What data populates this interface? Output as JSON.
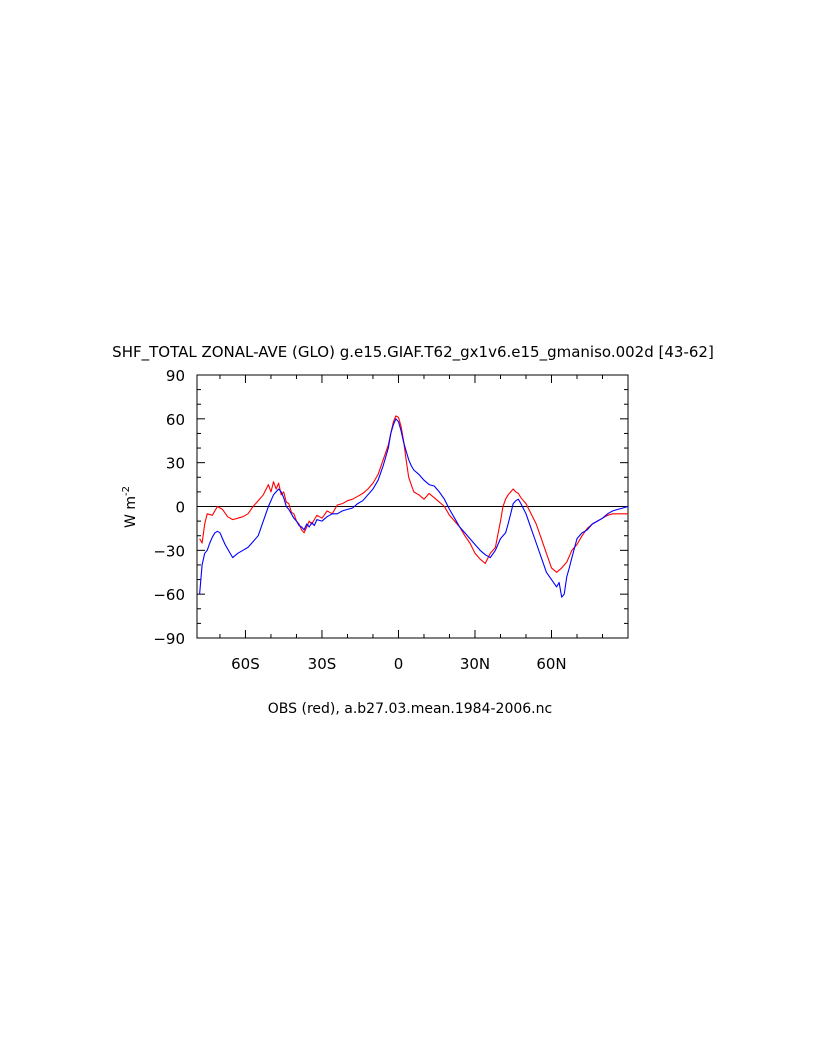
{
  "chart_data": {
    "type": "line",
    "title": "SHF_TOTAL ZONAL-AVE (GLO) g.e15.GIAF.T62_gx1v6.e15_gmaniso.002d  [43-62]",
    "ylabel": "W m",
    "ylabel_sup": "-2",
    "xlabel": "OBS (red), a.b27.03.mean.1984-2006.nc",
    "xlim": [
      -79,
      90
    ],
    "ylim": [
      -90,
      90
    ],
    "yticks": [
      -90,
      -60,
      -30,
      0,
      30,
      60,
      90
    ],
    "ytick_labels": [
      "−90",
      "−60",
      "−30",
      "0",
      "30",
      "60",
      "90"
    ],
    "xticks": [
      -60,
      -30,
      0,
      30,
      60
    ],
    "xtick_labels": [
      "60S",
      "30S",
      "0",
      "30N",
      "60N"
    ],
    "zero_line": true,
    "grid": false,
    "legend": "none",
    "series": [
      {
        "color": "#ff0000",
        "x": [
          -78,
          -77,
          -76,
          -75,
          -73,
          -71,
          -69,
          -67,
          -65,
          -63,
          -61,
          -59,
          -57,
          -55,
          -53,
          -51,
          -50,
          -49,
          -48,
          -47,
          -46,
          -45,
          -44,
          -43,
          -42,
          -41,
          -40,
          -39,
          -38,
          -37,
          -36,
          -35,
          -34,
          -33,
          -32,
          -30,
          -28,
          -26,
          -24,
          -22,
          -20,
          -18,
          -16,
          -14,
          -12,
          -10,
          -8,
          -6,
          -4,
          -3,
          -2,
          -1,
          0,
          1,
          2,
          3,
          4,
          5,
          6,
          8,
          10,
          12,
          14,
          16,
          18,
          20,
          22,
          24,
          26,
          28,
          30,
          32,
          34,
          36,
          38,
          40,
          41,
          42,
          43,
          44,
          45,
          46,
          47,
          48,
          49,
          50,
          52,
          54,
          56,
          58,
          60,
          62,
          64,
          66,
          68,
          70,
          72,
          74,
          76,
          78,
          80,
          82,
          84,
          86,
          88,
          90
        ],
        "y": [
          -22,
          -25,
          -12,
          -5,
          -6,
          0,
          -2,
          -7,
          -9,
          -8,
          -7,
          -5,
          0,
          4,
          8,
          15,
          10,
          17,
          12,
          16,
          8,
          10,
          3,
          2,
          -4,
          -5,
          -10,
          -12,
          -16,
          -18,
          -14,
          -10,
          -12,
          -9,
          -6,
          -8,
          -3,
          -5,
          1,
          2,
          4,
          5,
          7,
          9,
          12,
          16,
          22,
          32,
          42,
          50,
          58,
          62,
          61,
          55,
          45,
          32,
          20,
          15,
          10,
          8,
          5,
          9,
          6,
          3,
          0,
          -6,
          -10,
          -14,
          -20,
          -25,
          -32,
          -36,
          -39,
          -32,
          -28,
          -10,
          0,
          5,
          8,
          10,
          12,
          10,
          9,
          6,
          4,
          2,
          -5,
          -12,
          -22,
          -32,
          -42,
          -45,
          -42,
          -38,
          -30,
          -26,
          -20,
          -15,
          -12,
          -10,
          -8,
          -6,
          -5,
          -5,
          -5,
          -5
        ]
      },
      {
        "color": "#0000ff",
        "x": [
          -78,
          -77,
          -76,
          -75,
          -74,
          -73,
          -72,
          -71,
          -70,
          -69,
          -68,
          -67,
          -65,
          -63,
          -61,
          -59,
          -57,
          -55,
          -53,
          -51,
          -49,
          -47,
          -46,
          -45,
          -44,
          -43,
          -42,
          -41,
          -40,
          -39,
          -38,
          -37,
          -36,
          -35,
          -34,
          -33,
          -32,
          -30,
          -28,
          -26,
          -24,
          -22,
          -20,
          -18,
          -16,
          -14,
          -12,
          -10,
          -8,
          -6,
          -4,
          -3,
          -2,
          -1,
          0,
          1,
          2,
          3,
          4,
          5,
          6,
          8,
          10,
          12,
          14,
          16,
          18,
          20,
          22,
          24,
          26,
          28,
          30,
          32,
          34,
          36,
          38,
          40,
          42,
          43,
          44,
          45,
          46,
          47,
          48,
          50,
          52,
          54,
          56,
          58,
          60,
          62,
          63,
          64,
          65,
          66,
          67,
          68,
          70,
          72,
          74,
          76,
          78,
          80,
          82,
          84,
          86,
          88,
          90
        ],
        "y": [
          -60,
          -40,
          -32,
          -30,
          -25,
          -21,
          -18,
          -17,
          -18,
          -22,
          -26,
          -29,
          -35,
          -32,
          -30,
          -28,
          -24,
          -20,
          -10,
          0,
          8,
          12,
          10,
          6,
          0,
          -2,
          -5,
          -8,
          -10,
          -13,
          -14,
          -16,
          -12,
          -14,
          -11,
          -13,
          -9,
          -10,
          -7,
          -5,
          -5,
          -3,
          -2,
          -1,
          2,
          4,
          8,
          12,
          18,
          28,
          40,
          50,
          56,
          60,
          58,
          52,
          44,
          38,
          32,
          28,
          25,
          22,
          18,
          15,
          14,
          10,
          5,
          -2,
          -8,
          -14,
          -18,
          -22,
          -26,
          -30,
          -33,
          -35,
          -30,
          -22,
          -18,
          -12,
          -5,
          2,
          4,
          5,
          2,
          -5,
          -15,
          -25,
          -35,
          -45,
          -50,
          -55,
          -52,
          -62,
          -60,
          -48,
          -42,
          -35,
          -22,
          -18,
          -16,
          -12,
          -10,
          -8,
          -5,
          -3,
          -2,
          -1,
          0
        ]
      }
    ]
  }
}
